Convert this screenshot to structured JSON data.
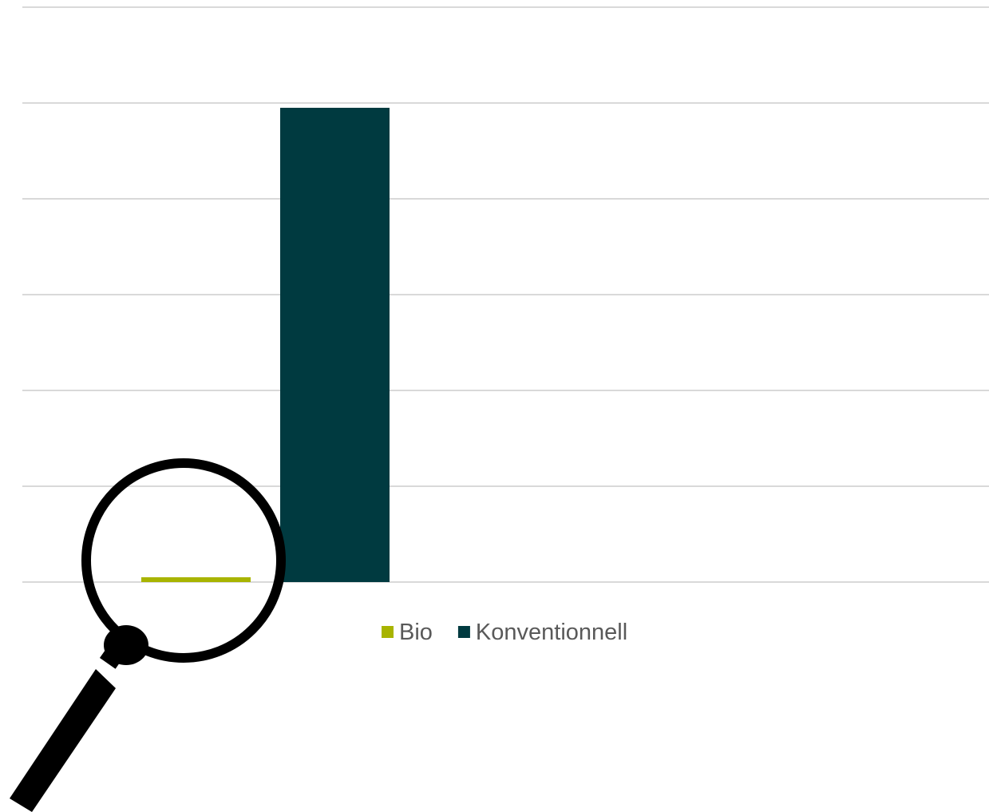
{
  "chart_data": {
    "type": "bar",
    "categories": [
      ""
    ],
    "series": [
      {
        "name": "Bio",
        "values": [
          0.05
        ],
        "color": "#a8b400"
      },
      {
        "name": "Konventionnell",
        "values": [
          4.95
        ],
        "color": "#003a40"
      }
    ],
    "title": "",
    "xlabel": "",
    "ylabel": "",
    "ylim": [
      0,
      6
    ],
    "grid": true,
    "legend_position": "bottom"
  },
  "decoration": {
    "icon": "magnifying-glass-icon"
  }
}
